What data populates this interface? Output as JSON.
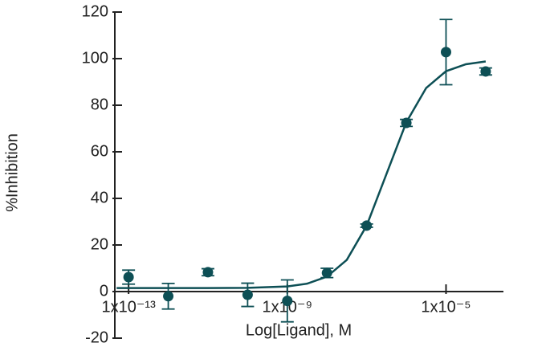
{
  "chart_data": {
    "type": "scatter",
    "x_label": "Log[Ligand], M",
    "y_label": "%Inhibition",
    "xscale": "log",
    "xlim": [
      4.5e-14,
      0.00028
    ],
    "ylim": [
      -20,
      120
    ],
    "xticks": [
      {
        "value": 1e-13,
        "label": "1x10⁻¹³"
      },
      {
        "value": 1e-09,
        "label": "1x10⁻⁹"
      },
      {
        "value": 1e-05,
        "label": "1x10⁻⁵"
      }
    ],
    "yticks": [
      -20,
      0,
      20,
      40,
      60,
      80,
      100,
      120
    ],
    "series": [
      {
        "color": "#0d4f55",
        "x": [
          1e-13,
          1e-12,
          1e-11,
          1e-10,
          1e-09,
          1e-08,
          1e-07,
          1e-06,
          1e-05,
          0.0001
        ],
        "values": [
          6.2,
          -2,
          8.3,
          -1.4,
          -4,
          8,
          28.3,
          72.4,
          102.8,
          94.5
        ],
        "errors": [
          3,
          5.5,
          1.5,
          5,
          9,
          2,
          0.7,
          1.5,
          14,
          1.5
        ]
      },
      {
        "kind": "fit",
        "color": "#0d4f55",
        "x": [
          5e-14,
          1e-11,
          1e-10,
          1e-09,
          3.16e-09,
          1e-08,
          3.16e-08,
          1e-07,
          3.16e-07,
          1e-06,
          3.16e-06,
          1e-05,
          3.16e-05,
          0.0001
        ],
        "values": [
          1.5,
          1.5,
          1.6,
          2.2,
          3.4,
          6.4,
          13.6,
          28.3,
          50.5,
          72.7,
          87.4,
          94.6,
          97.6,
          98.8
        ]
      }
    ]
  }
}
